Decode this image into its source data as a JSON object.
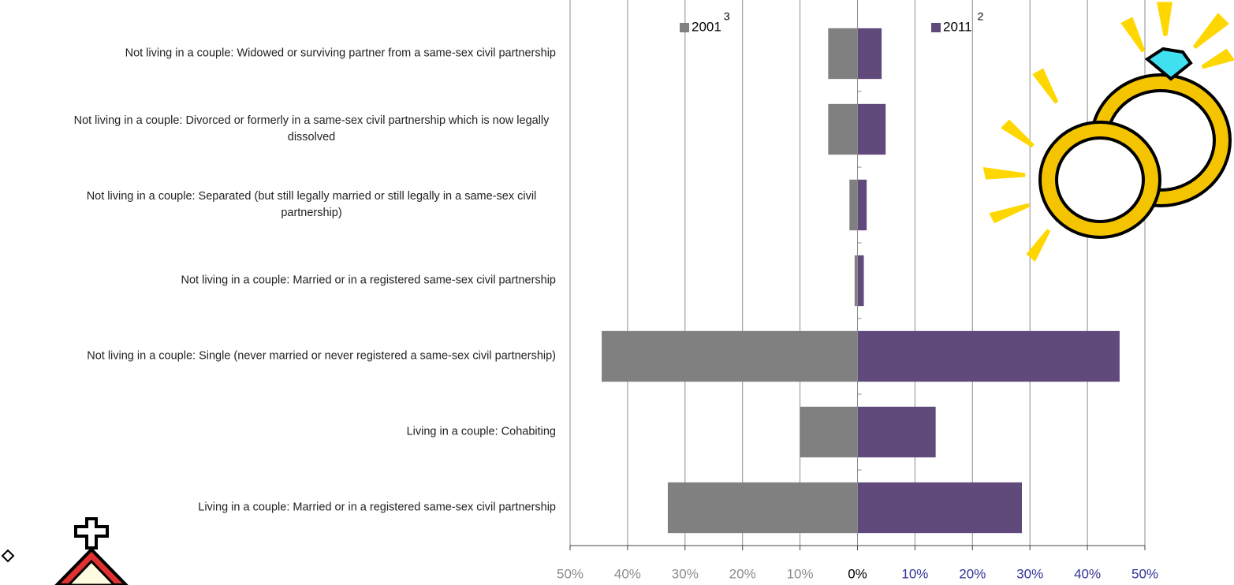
{
  "chart_data": {
    "type": "bar",
    "orientation": "horizontal",
    "categories": [
      "Not living in a couple: Widowed or surviving partner from a same-sex civil partnership",
      "Not living in a couple: Divorced or formerly in a same-sex civil partnership which is now legally dissolved",
      "Not living in a couple: Separated (but still legally married or still legally in a same-sex civil partnership)",
      "Not living in a couple: Married or in a registered same-sex civil partnership",
      "Not living in a couple: Single (never married or never registered a same-sex civil partnership)",
      "Living in a couple: Cohabiting",
      "Living in a couple: Married or in a registered same-sex civil partnership"
    ],
    "series": [
      {
        "name": "2001",
        "marker": "3",
        "color": "#808080",
        "values": [
          -5.1,
          -5.1,
          -1.4,
          -0.5,
          -44.5,
          -10.0,
          -33.0
        ]
      },
      {
        "name": "2011",
        "marker": "2",
        "color": "#604a7b",
        "values": [
          4.2,
          4.9,
          1.6,
          1.1,
          45.6,
          13.6,
          28.6
        ]
      }
    ],
    "xlim": [
      -50,
      50
    ],
    "xticks": [
      {
        "value": -50,
        "label": "50%"
      },
      {
        "value": -40,
        "label": "40%"
      },
      {
        "value": -30,
        "label": "30%"
      },
      {
        "value": -20,
        "label": "20%"
      },
      {
        "value": -10,
        "label": "10%"
      },
      {
        "value": 0,
        "label": "0%"
      },
      {
        "value": 10,
        "label": "10%"
      },
      {
        "value": 20,
        "label": "20%"
      },
      {
        "value": 30,
        "label": "30%"
      },
      {
        "value": 40,
        "label": "40%"
      },
      {
        "value": 50,
        "label": "50%"
      }
    ],
    "grid": true
  }
}
